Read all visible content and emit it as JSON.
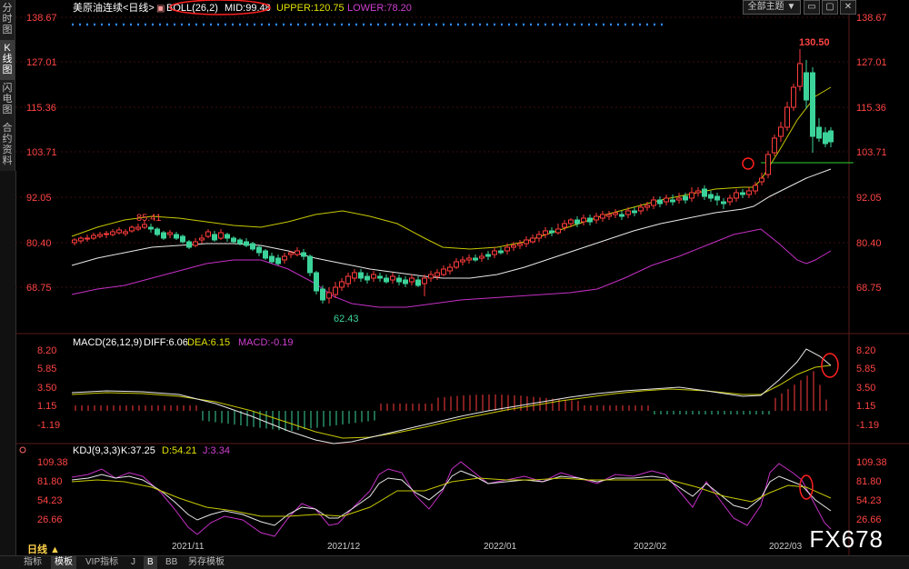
{
  "sidebar": {
    "tabs": [
      {
        "label": "分时图"
      },
      {
        "label": "K线图"
      },
      {
        "label": "闪电图"
      },
      {
        "label": "合约资料"
      }
    ]
  },
  "toolbar": {
    "theme_label": "全部主题",
    "dropdown_glyph": "▼"
  },
  "main": {
    "title": "美原油连续<日线>",
    "indicator": "BOLL(26,2)",
    "mid": "MID:99.48",
    "upper": "UPPER:120.75",
    "lower": "LOWER:78.20",
    "high_label": "130.50",
    "left_labels": [
      "85.41"
    ],
    "low_label": "62.43",
    "price_ticks": [
      "138.67",
      "127.01",
      "115.36",
      "103.71",
      "92.05",
      "80.40",
      "68.75"
    ]
  },
  "macd": {
    "name": "MACD(26,12,9)",
    "diff": "DIFF:6.06",
    "dea": "DEA:6.15",
    "macd": "MACD:-0.19",
    "ticks": [
      "8.20",
      "5.85",
      "3.50",
      "1.15",
      "-1.19"
    ]
  },
  "kdj": {
    "name": "KDJ(9,3,3)",
    "k": "K:37.25",
    "d": "D:54.21",
    "j": "J:3.34",
    "ticks": [
      "109.38",
      "81.80",
      "54.23",
      "26.66"
    ]
  },
  "dates": [
    "2021/11",
    "2021/12",
    "2022/01",
    "2022/02",
    "2022/03"
  ],
  "bottom": {
    "period": "日线 ▲",
    "tabs": [
      "指标",
      "模板",
      "VIP指标",
      "J",
      "B",
      "BB",
      "另存模板"
    ]
  },
  "watermark": "FX678",
  "colors": {
    "up": "#ff3d3d",
    "down": "#3cd39a",
    "mid": "#e8e8e8",
    "upper": "#c8c800",
    "lower": "#c530c5",
    "grid": "#4a1010"
  }
}
